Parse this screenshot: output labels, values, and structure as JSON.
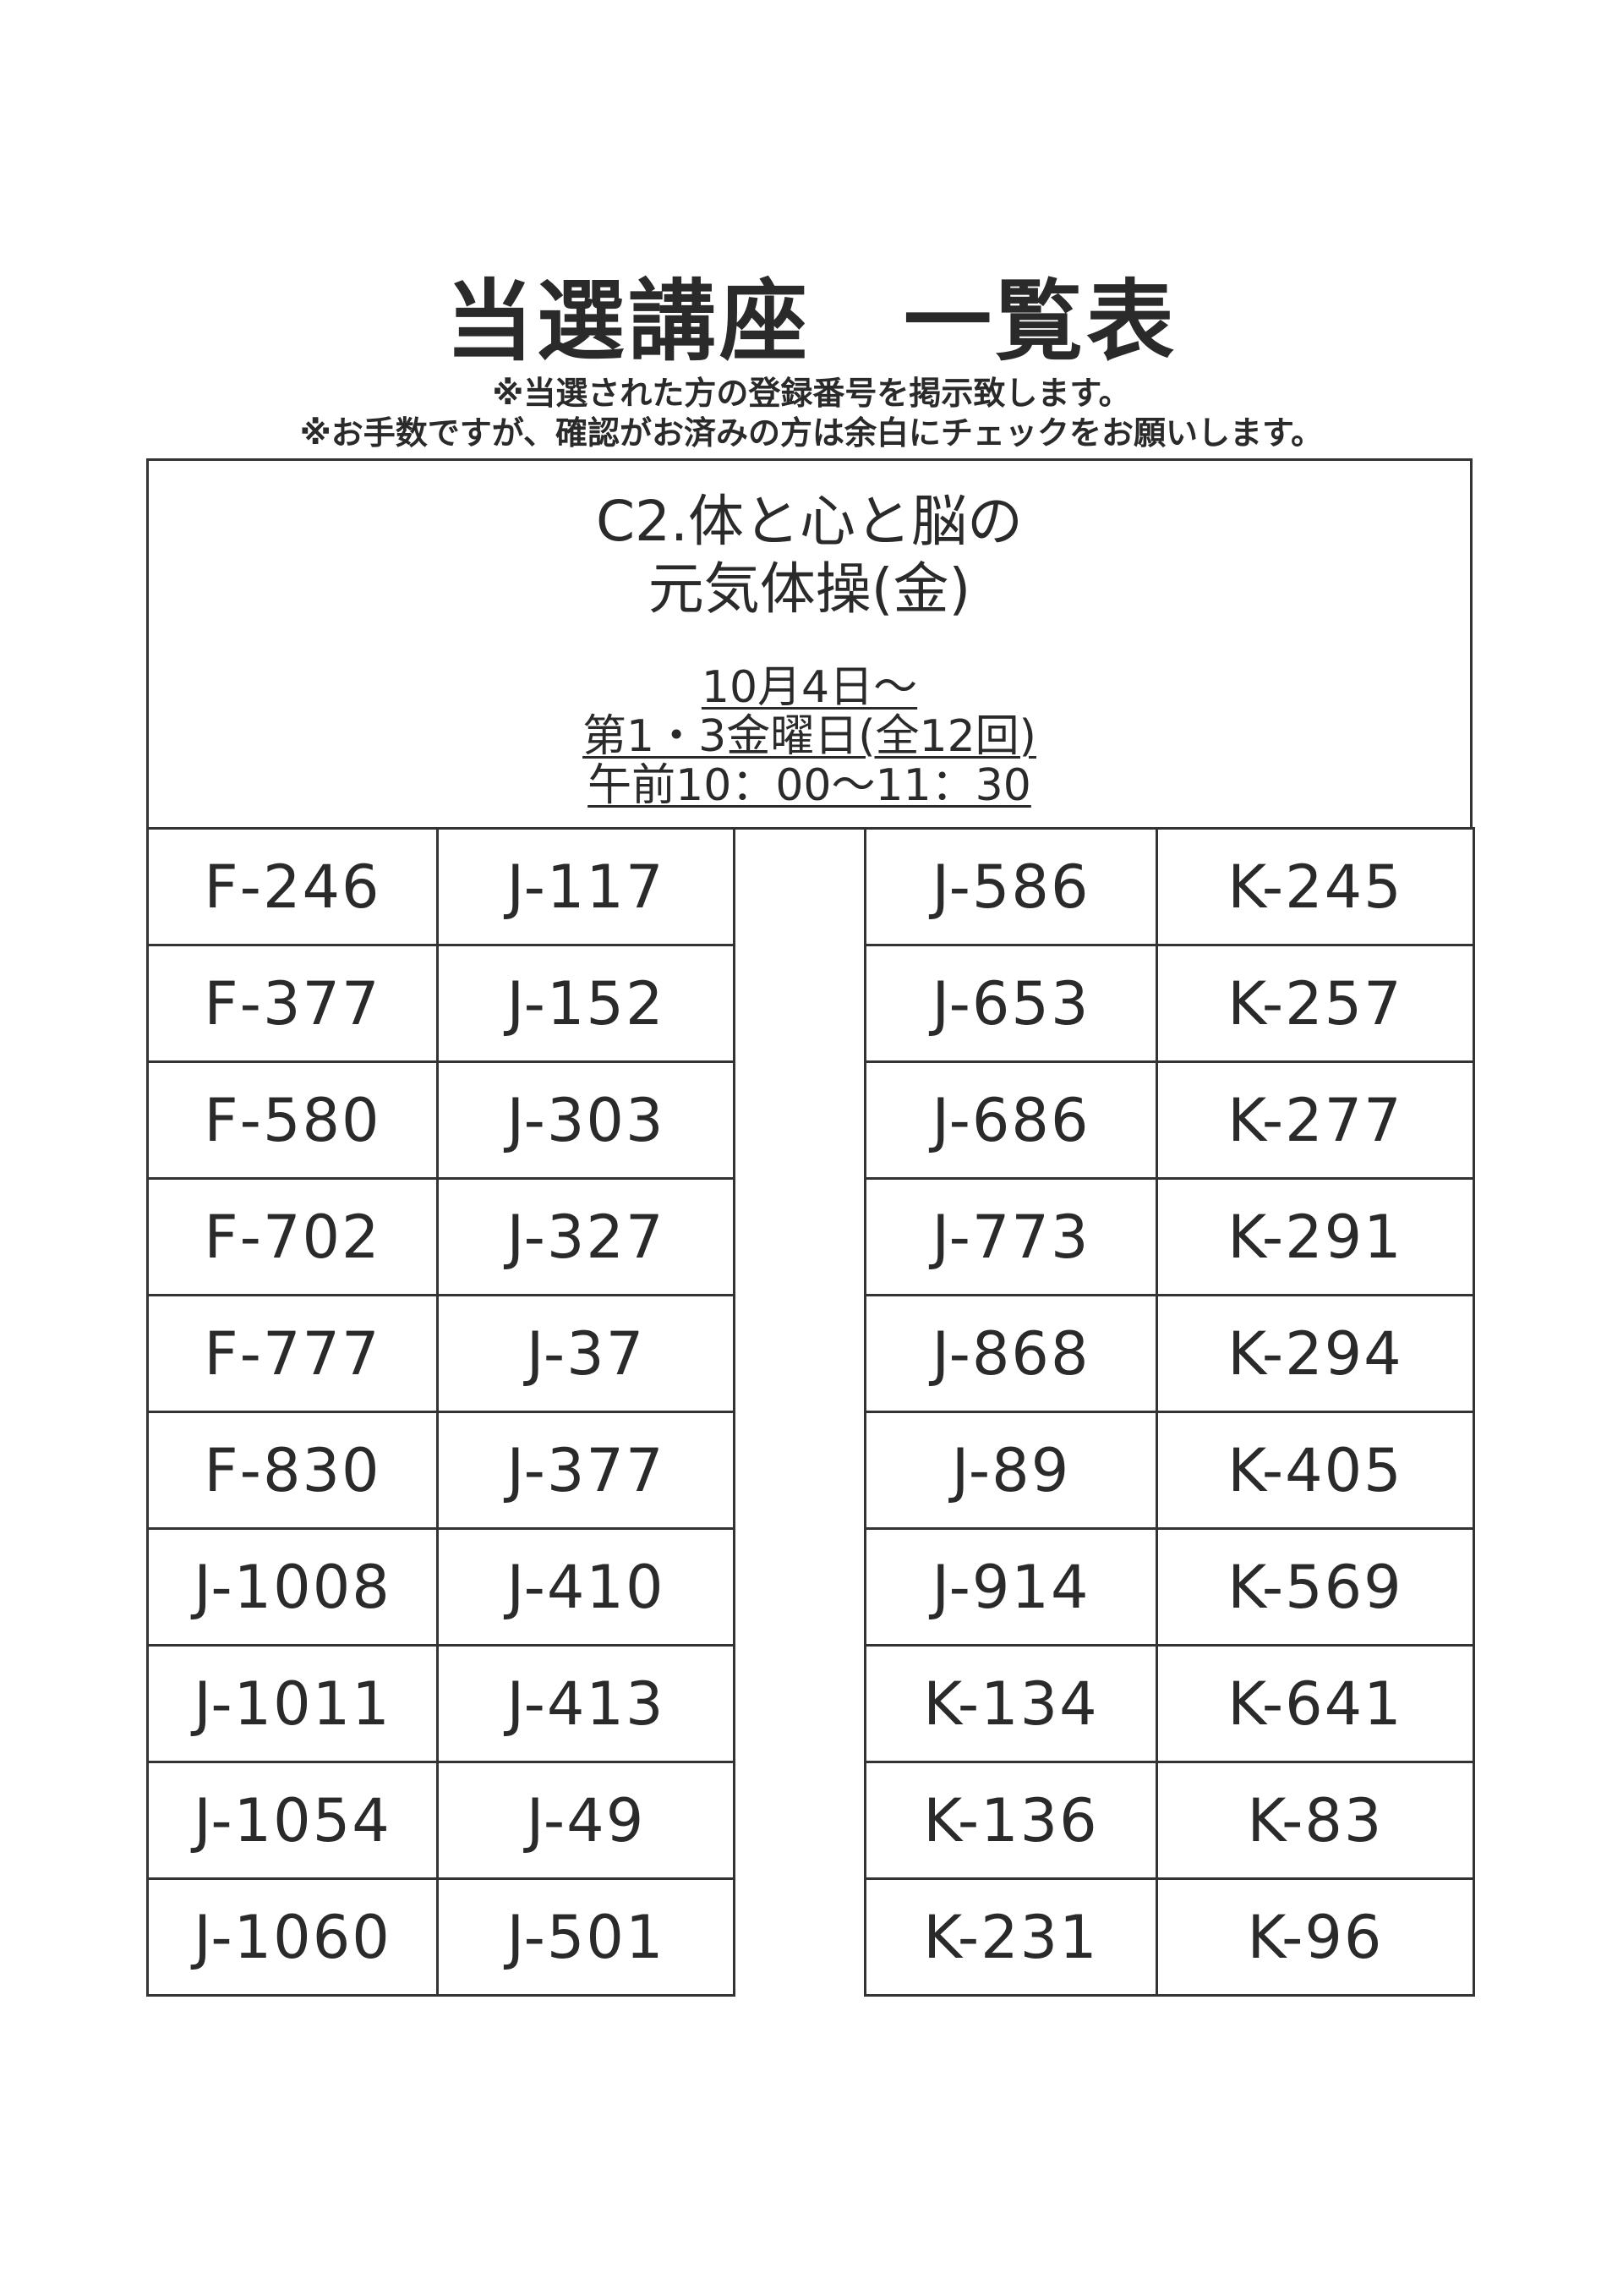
{
  "title": {
    "part1": "当選講座",
    "part2": "一覧表"
  },
  "notes": [
    "※当選された方の登録番号を掲示致します。",
    "※お手数ですが、確認がお済みの方は余白にチェックをお願いします。"
  ],
  "course": {
    "name_line1": "C2.体と心と脳の",
    "name_line2": "元気体操(金)",
    "start": "10月4日～",
    "days": "第1・3金曜日(全12回)",
    "time": "午前10：00～11：30"
  },
  "numbers_left": [
    [
      "F-246",
      "J-117"
    ],
    [
      "F-377",
      "J-152"
    ],
    [
      "F-580",
      "J-303"
    ],
    [
      "F-702",
      "J-327"
    ],
    [
      "F-777",
      "J-37"
    ],
    [
      "F-830",
      "J-377"
    ],
    [
      "J-1008",
      "J-410"
    ],
    [
      "J-1011",
      "J-413"
    ],
    [
      "J-1054",
      "J-49"
    ],
    [
      "J-1060",
      "J-501"
    ]
  ],
  "numbers_right": [
    [
      "J-586",
      "K-245"
    ],
    [
      "J-653",
      "K-257"
    ],
    [
      "J-686",
      "K-277"
    ],
    [
      "J-773",
      "K-291"
    ],
    [
      "J-868",
      "K-294"
    ],
    [
      "J-89",
      "K-405"
    ],
    [
      "J-914",
      "K-569"
    ],
    [
      "K-134",
      "K-641"
    ],
    [
      "K-136",
      "K-83"
    ],
    [
      "K-231",
      "K-96"
    ]
  ]
}
